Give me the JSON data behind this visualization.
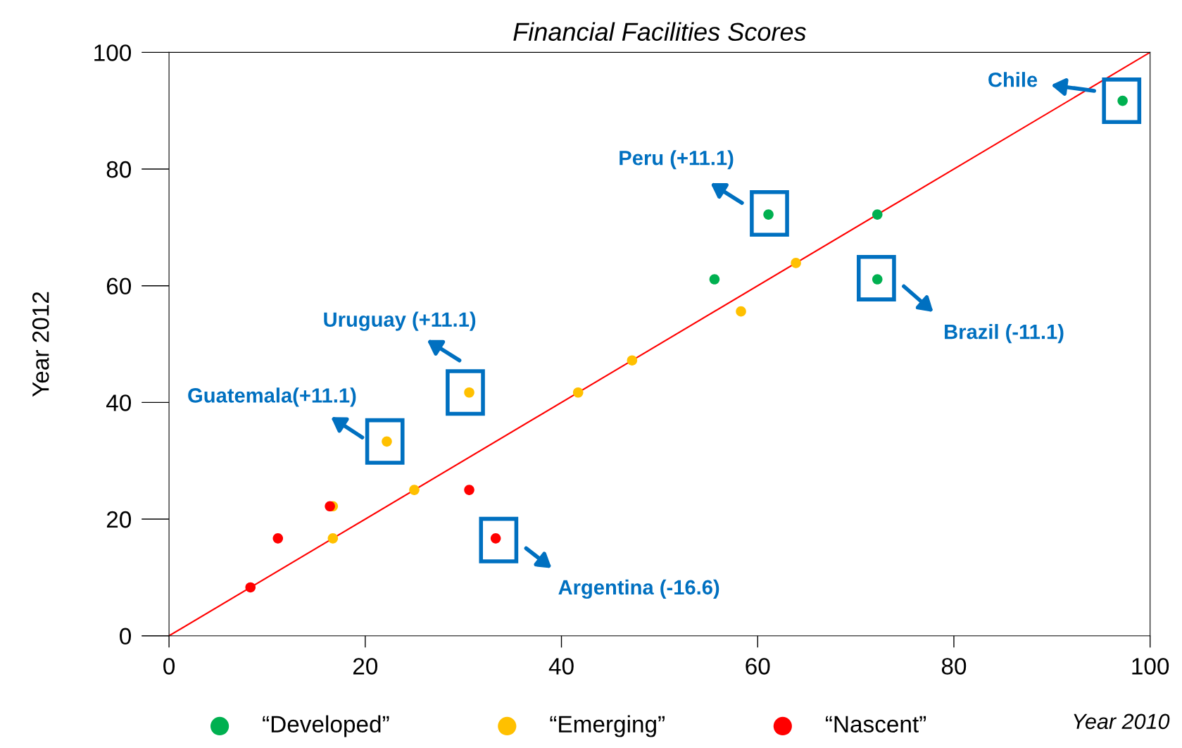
{
  "chart_data": {
    "type": "scatter",
    "title": "Financial Facilities Scores",
    "xlabel": "Year 2010",
    "ylabel": "Year 2012",
    "xlim": [
      0,
      100
    ],
    "ylim": [
      0,
      100
    ],
    "xticks": [
      0,
      20,
      40,
      60,
      80,
      100
    ],
    "yticks": [
      0,
      20,
      40,
      60,
      80,
      100
    ],
    "grid": false,
    "legend": "bottom",
    "marker": "circle",
    "series": [
      {
        "name": "“Developed”",
        "color": "#00b050",
        "x": [
          97.2,
          61.1,
          72.2,
          55.6,
          72.2
        ],
        "values": [
          91.7,
          72.2,
          72.2,
          61.1,
          61.1
        ]
      },
      {
        "name": "“Emerging”",
        "color": "#ffc000",
        "x": [
          30.6,
          22.2,
          16.7,
          16.7,
          25.0,
          41.7,
          47.2,
          58.3,
          63.9
        ],
        "values": [
          41.7,
          33.3,
          22.2,
          16.7,
          25.0,
          41.7,
          47.2,
          55.6,
          63.9
        ]
      },
      {
        "name": "“Nascent”",
        "color": "#ff0000",
        "x": [
          8.3,
          11.1,
          16.4,
          30.6,
          33.3
        ],
        "values": [
          8.3,
          16.7,
          22.2,
          25.0,
          16.7
        ]
      },
      {
        "type": "line",
        "color": "#ff0000",
        "x": [
          0,
          100
        ],
        "values": [
          0,
          100
        ],
        "marker": "none"
      }
    ],
    "annotations": [
      "Chile",
      "Peru (+11.1)",
      "Brazil (-11.1)",
      "Uruguay (+11.1)",
      "Guatemala(+11.1)",
      "Argentina (-16.6)"
    ]
  }
}
